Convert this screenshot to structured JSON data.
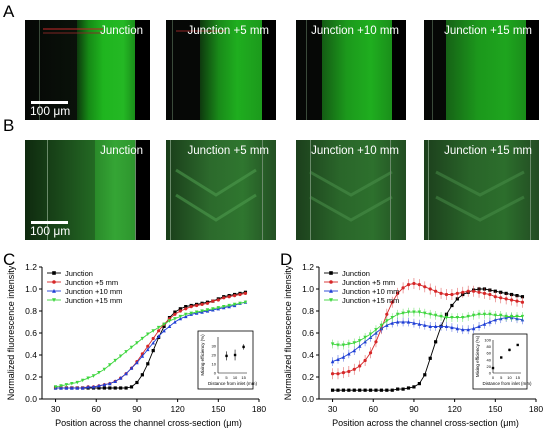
{
  "panels": {
    "A": "A",
    "B": "B",
    "C": "C",
    "D": "D"
  },
  "microscopy": {
    "labels": [
      "Junction",
      "Junction +5 mm",
      "Junction +10 mm",
      "Junction +15 mm"
    ],
    "scale_bar": "100 μm",
    "colors": {
      "green": "#1fb51f",
      "dark": "#000000"
    }
  },
  "chart_data": [
    {
      "type": "line",
      "panel": "C",
      "xlabel": "Position across the channel cross-section (μm)",
      "ylabel": "Normalized fluorescence intensity",
      "xlim": [
        20,
        180
      ],
      "ylim": [
        0,
        1.2
      ],
      "xticks": [
        30,
        60,
        90,
        120,
        150,
        180
      ],
      "yticks": [
        0.0,
        0.2,
        0.4,
        0.6,
        0.8,
        1.0,
        1.2
      ],
      "legend_position": "top-left",
      "x": [
        30,
        34,
        38,
        42,
        46,
        50,
        54,
        58,
        62,
        66,
        70,
        74,
        78,
        82,
        86,
        90,
        94,
        98,
        102,
        106,
        110,
        114,
        118,
        122,
        126,
        130,
        134,
        138,
        142,
        146,
        150,
        154,
        158,
        162,
        166,
        170
      ],
      "series": [
        {
          "name": "Junction",
          "color": "#000000",
          "marker": "square",
          "values": [
            0.1,
            0.1,
            0.1,
            0.1,
            0.1,
            0.1,
            0.1,
            0.1,
            0.1,
            0.1,
            0.1,
            0.1,
            0.1,
            0.1,
            0.11,
            0.15,
            0.22,
            0.32,
            0.44,
            0.56,
            0.66,
            0.74,
            0.79,
            0.82,
            0.84,
            0.85,
            0.86,
            0.87,
            0.88,
            0.89,
            0.91,
            0.93,
            0.94,
            0.95,
            0.96,
            0.97
          ]
        },
        {
          "name": "Junction +5 mm",
          "color": "#d62728",
          "marker": "circle",
          "values": [
            0.1,
            0.1,
            0.1,
            0.1,
            0.1,
            0.1,
            0.11,
            0.11,
            0.12,
            0.13,
            0.14,
            0.16,
            0.19,
            0.23,
            0.28,
            0.34,
            0.41,
            0.48,
            0.55,
            0.62,
            0.68,
            0.73,
            0.77,
            0.8,
            0.82,
            0.84,
            0.85,
            0.86,
            0.87,
            0.89,
            0.9,
            0.92,
            0.93,
            0.94,
            0.95,
            0.96
          ]
        },
        {
          "name": "Junction +10 mm",
          "color": "#1f3fd6",
          "marker": "triangle",
          "values": [
            0.1,
            0.1,
            0.1,
            0.1,
            0.1,
            0.1,
            0.11,
            0.11,
            0.12,
            0.13,
            0.14,
            0.16,
            0.19,
            0.23,
            0.28,
            0.33,
            0.39,
            0.45,
            0.51,
            0.57,
            0.62,
            0.66,
            0.7,
            0.73,
            0.75,
            0.77,
            0.78,
            0.79,
            0.8,
            0.81,
            0.82,
            0.83,
            0.84,
            0.85,
            0.87,
            0.88
          ]
        },
        {
          "name": "Junction +15 mm",
          "color": "#3fd63f",
          "marker": "triangle-down",
          "values": [
            0.11,
            0.12,
            0.13,
            0.14,
            0.15,
            0.17,
            0.19,
            0.21,
            0.24,
            0.27,
            0.31,
            0.35,
            0.39,
            0.43,
            0.47,
            0.51,
            0.55,
            0.59,
            0.62,
            0.65,
            0.68,
            0.71,
            0.73,
            0.75,
            0.77,
            0.78,
            0.79,
            0.8,
            0.81,
            0.82,
            0.83,
            0.84,
            0.85,
            0.86,
            0.87,
            0.88
          ]
        }
      ],
      "inset": {
        "xlabel": "Distance from inlet (mm)",
        "ylabel": "Mixing efficiency (%)",
        "xlim": [
          0,
          17
        ],
        "ylim": [
          0,
          40
        ],
        "xticks": [
          0,
          5,
          10,
          15
        ],
        "yticks": [
          0,
          10,
          20,
          30
        ],
        "points": [
          {
            "x": 5,
            "y": 19,
            "err": 5
          },
          {
            "x": 10,
            "y": 20,
            "err": 6
          },
          {
            "x": 15,
            "y": 29,
            "err": 3
          }
        ]
      }
    },
    {
      "type": "line",
      "panel": "D",
      "xlabel": "Position across the channel cross-section (μm)",
      "ylabel": "Normalized fluorescence intensity",
      "xlim": [
        20,
        180
      ],
      "ylim": [
        0,
        1.2
      ],
      "xticks": [
        30,
        60,
        90,
        120,
        150,
        180
      ],
      "yticks": [
        0.0,
        0.2,
        0.4,
        0.6,
        0.8,
        1.0,
        1.2
      ],
      "legend_position": "top-left",
      "x": [
        30,
        34,
        38,
        42,
        46,
        50,
        54,
        58,
        62,
        66,
        70,
        74,
        78,
        82,
        86,
        90,
        94,
        98,
        102,
        106,
        110,
        114,
        118,
        122,
        126,
        130,
        134,
        138,
        142,
        146,
        150,
        154,
        158,
        162,
        166,
        170
      ],
      "series": [
        {
          "name": "Junction",
          "color": "#000000",
          "marker": "square",
          "values": [
            0.08,
            0.08,
            0.08,
            0.08,
            0.08,
            0.08,
            0.08,
            0.08,
            0.08,
            0.08,
            0.08,
            0.08,
            0.09,
            0.09,
            0.1,
            0.11,
            0.14,
            0.22,
            0.37,
            0.52,
            0.66,
            0.77,
            0.85,
            0.91,
            0.95,
            0.97,
            0.99,
            1.0,
            1.0,
            0.99,
            0.98,
            0.97,
            0.96,
            0.95,
            0.94,
            0.93
          ]
        },
        {
          "name": "Junction +5 mm",
          "color": "#d62728",
          "marker": "circle",
          "values": [
            0.23,
            0.23,
            0.24,
            0.25,
            0.27,
            0.3,
            0.35,
            0.42,
            0.52,
            0.64,
            0.77,
            0.88,
            0.96,
            1.01,
            1.04,
            1.05,
            1.04,
            1.02,
            1.0,
            0.98,
            0.96,
            0.95,
            0.95,
            0.96,
            0.97,
            0.98,
            0.98,
            0.97,
            0.96,
            0.95,
            0.93,
            0.92,
            0.91,
            0.9,
            0.89,
            0.88
          ]
        },
        {
          "name": "Junction +10 mm",
          "color": "#1f3fd6",
          "marker": "triangle",
          "values": [
            0.34,
            0.36,
            0.38,
            0.41,
            0.44,
            0.48,
            0.52,
            0.56,
            0.6,
            0.64,
            0.67,
            0.69,
            0.7,
            0.7,
            0.7,
            0.69,
            0.68,
            0.67,
            0.66,
            0.66,
            0.66,
            0.66,
            0.65,
            0.64,
            0.63,
            0.63,
            0.64,
            0.66,
            0.68,
            0.7,
            0.72,
            0.73,
            0.74,
            0.74,
            0.73,
            0.72
          ]
        },
        {
          "name": "Junction +15 mm",
          "color": "#3fd63f",
          "marker": "triangle-down",
          "values": [
            0.5,
            0.49,
            0.49,
            0.5,
            0.51,
            0.53,
            0.56,
            0.59,
            0.63,
            0.67,
            0.71,
            0.74,
            0.77,
            0.78,
            0.79,
            0.79,
            0.79,
            0.78,
            0.77,
            0.76,
            0.75,
            0.74,
            0.74,
            0.74,
            0.74,
            0.75,
            0.76,
            0.77,
            0.77,
            0.77,
            0.76,
            0.76,
            0.75,
            0.75,
            0.75,
            0.75
          ]
        }
      ],
      "inset": {
        "xlabel": "Distance from inlet (mm)",
        "ylabel": "Mixing efficiency (%)",
        "xlim": [
          0,
          17
        ],
        "ylim": [
          0,
          100
        ],
        "xticks": [
          0,
          5,
          10,
          15
        ],
        "yticks": [
          0,
          20,
          40,
          60,
          80,
          100
        ],
        "points": [
          {
            "x": 0,
            "y": 15,
            "err": 2
          },
          {
            "x": 5,
            "y": 47,
            "err": 3
          },
          {
            "x": 10,
            "y": 70,
            "err": 4
          },
          {
            "x": 15,
            "y": 85,
            "err": 2
          }
        ]
      }
    }
  ]
}
